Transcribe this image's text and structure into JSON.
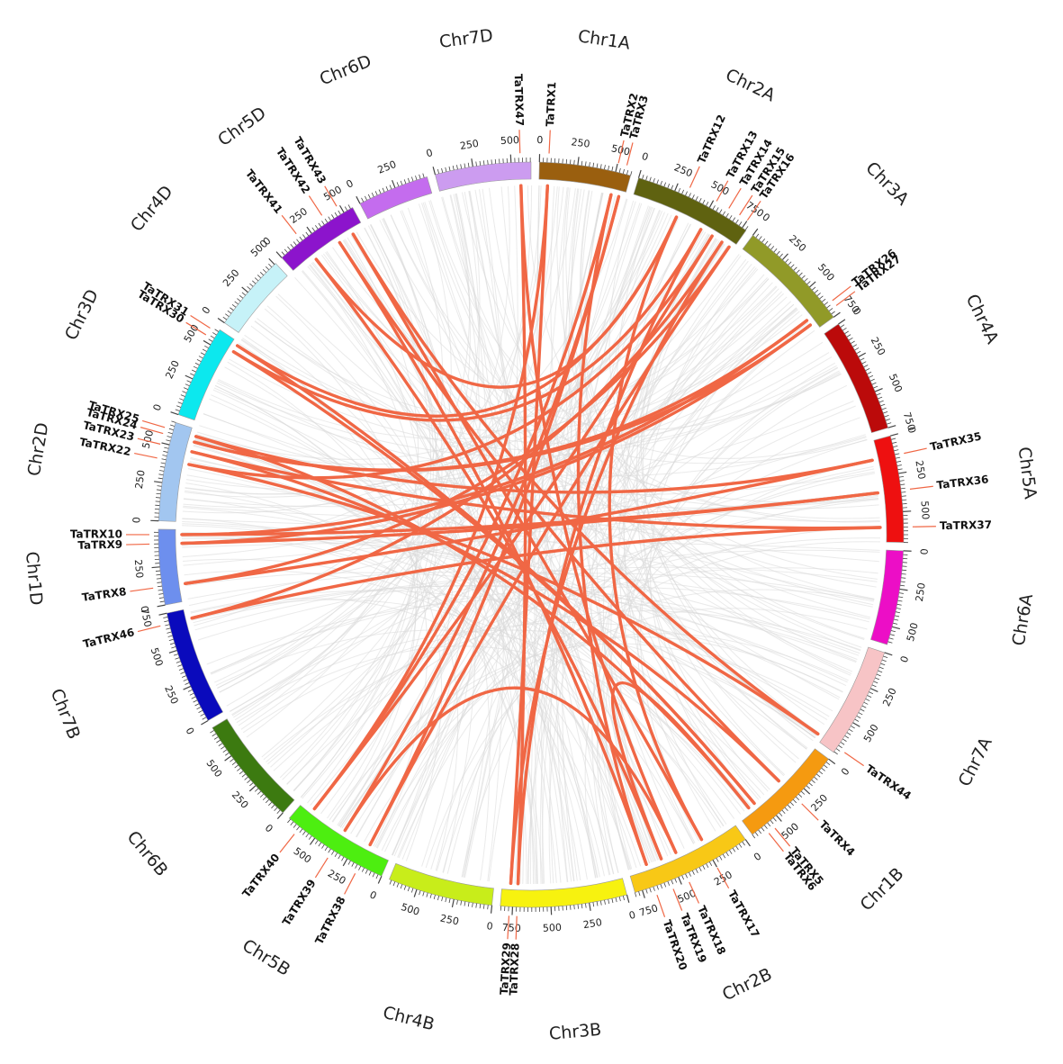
{
  "link_color": "#F06745",
  "background_link_color": "#D8D8D8",
  "chromosomes": [
    {
      "name": "Chr1A",
      "length": 600,
      "color": "#9A5F0F"
    },
    {
      "name": "Chr2A",
      "length": 780,
      "color": "#5F6210"
    },
    {
      "name": "Chr3A",
      "length": 750,
      "color": "#919A28"
    },
    {
      "name": "Chr4A",
      "length": 750,
      "color": "#BB0A0A"
    },
    {
      "name": "Chr5A",
      "length": 700,
      "color": "#EE1010"
    },
    {
      "name": "Chr6A",
      "length": 620,
      "color": "#EC0EC6"
    },
    {
      "name": "Chr7A",
      "length": 730,
      "color": "#F7C4C6"
    },
    {
      "name": "Chr1B",
      "length": 700,
      "color": "#F59A10"
    },
    {
      "name": "Chr2B",
      "length": 800,
      "color": "#F8C816"
    },
    {
      "name": "Chr3B",
      "length": 830,
      "color": "#F7F20F"
    },
    {
      "name": "Chr4B",
      "length": 690,
      "color": "#C8ED1A"
    },
    {
      "name": "Chr5B",
      "length": 710,
      "color": "#4DEE10"
    },
    {
      "name": "Chr6B",
      "length": 720,
      "color": "#3C7A10"
    },
    {
      "name": "Chr7B",
      "length": 750,
      "color": "#0A0ABC"
    },
    {
      "name": "Chr1D",
      "length": 495,
      "color": "#6D8FEE"
    },
    {
      "name": "Chr2D",
      "length": 650,
      "color": "#A2C6F0"
    },
    {
      "name": "Chr3D",
      "length": 615,
      "color": "#0CE8EE"
    },
    {
      "name": "Chr4D",
      "length": 510,
      "color": "#C6F2F8"
    },
    {
      "name": "Chr5D",
      "length": 565,
      "color": "#8C14CC"
    },
    {
      "name": "Chr6D",
      "length": 470,
      "color": "#C46CEE"
    },
    {
      "name": "Chr7D",
      "length": 630,
      "color": "#CC9CF0"
    }
  ],
  "genes": [
    {
      "name": "TaTRX1",
      "chr": "Chr1A",
      "pos": 60
    },
    {
      "name": "TaTRX2",
      "chr": "Chr1A",
      "pos": 505
    },
    {
      "name": "TaTRX3",
      "chr": "Chr1A",
      "pos": 560
    },
    {
      "name": "TaTRX12",
      "chr": "Chr2A",
      "pos": 330
    },
    {
      "name": "TaTRX13",
      "chr": "Chr2A",
      "pos": 520
    },
    {
      "name": "TaTRX14",
      "chr": "Chr2A",
      "pos": 610
    },
    {
      "name": "TaTRX15",
      "chr": "Chr2A",
      "pos": 690
    },
    {
      "name": "TaTRX16",
      "chr": "Chr2A",
      "pos": 750
    },
    {
      "name": "TaTRX26",
      "chr": "Chr3A",
      "pos": 660
    },
    {
      "name": "TaTRX27",
      "chr": "Chr3A",
      "pos": 700
    },
    {
      "name": "TaTRX35",
      "chr": "Chr5A",
      "pos": 130
    },
    {
      "name": "TaTRX36",
      "chr": "Chr5A",
      "pos": 360
    },
    {
      "name": "TaTRX37",
      "chr": "Chr5A",
      "pos": 600
    },
    {
      "name": "TaTRX44",
      "chr": "Chr7A",
      "pos": 690
    },
    {
      "name": "TaTRX4",
      "chr": "Chr1B",
      "pos": 330
    },
    {
      "name": "TaTRX5",
      "chr": "Chr1B",
      "pos": 560
    },
    {
      "name": "TaTRX6",
      "chr": "Chr1B",
      "pos": 610
    },
    {
      "name": "TaTRX17",
      "chr": "Chr2B",
      "pos": 250
    },
    {
      "name": "TaTRX18",
      "chr": "Chr2B",
      "pos": 450
    },
    {
      "name": "TaTRX19",
      "chr": "Chr2B",
      "pos": 560
    },
    {
      "name": "TaTRX20",
      "chr": "Chr2B",
      "pos": 670
    },
    {
      "name": "TaTRX28",
      "chr": "Chr3B",
      "pos": 720
    },
    {
      "name": "TaTRX29",
      "chr": "Chr3B",
      "pos": 770
    },
    {
      "name": "TaTRX38",
      "chr": "Chr5B",
      "pos": 160
    },
    {
      "name": "TaTRX39",
      "chr": "Chr5B",
      "pos": 360
    },
    {
      "name": "TaTRX40",
      "chr": "Chr5B",
      "pos": 620
    },
    {
      "name": "TaTRX46",
      "chr": "Chr7B",
      "pos": 680
    },
    {
      "name": "TaTRX8",
      "chr": "Chr1D",
      "pos": 120
    },
    {
      "name": "TaTRX9",
      "chr": "Chr1D",
      "pos": 400
    },
    {
      "name": "TaTRX10",
      "chr": "Chr1D",
      "pos": 460
    },
    {
      "name": "TaTRX22",
      "chr": "Chr2D",
      "pos": 400
    },
    {
      "name": "TaTRX23",
      "chr": "Chr2D",
      "pos": 490
    },
    {
      "name": "TaTRX24",
      "chr": "Chr2D",
      "pos": 560
    },
    {
      "name": "TaTRX25",
      "chr": "Chr2D",
      "pos": 600
    },
    {
      "name": "TaTRX30",
      "chr": "Chr3D",
      "pos": 540
    },
    {
      "name": "TaTRX31",
      "chr": "Chr3D",
      "pos": 590
    },
    {
      "name": "TaTRX41",
      "chr": "Chr5D",
      "pos": 170
    },
    {
      "name": "TaTRX42",
      "chr": "Chr5D",
      "pos": 370
    },
    {
      "name": "TaTRX43",
      "chr": "Chr5D",
      "pos": 480
    },
    {
      "name": "TaTRX47",
      "chr": "Chr7D",
      "pos": 560
    }
  ],
  "links": [
    [
      "TaTRX1",
      "TaTRX29"
    ],
    [
      "TaTRX47",
      "TaTRX28"
    ],
    [
      "TaTRX2",
      "TaTRX40"
    ],
    [
      "TaTRX3",
      "TaTRX38"
    ],
    [
      "TaTRX3",
      "TaTRX39"
    ],
    [
      "TaTRX12",
      "TaTRX41"
    ],
    [
      "TaTRX12",
      "TaTRX17"
    ],
    [
      "TaTRX13",
      "TaTRX30"
    ],
    [
      "TaTRX14",
      "TaTRX22"
    ],
    [
      "TaTRX15",
      "TaTRX46"
    ],
    [
      "TaTRX16",
      "TaTRX8"
    ],
    [
      "TaTRX26",
      "TaTRX24"
    ],
    [
      "TaTRX27",
      "TaTRX9"
    ],
    [
      "TaTRX35",
      "TaTRX25"
    ],
    [
      "TaTRX36",
      "TaTRX10"
    ],
    [
      "TaTRX37",
      "TaTRX23"
    ],
    [
      "TaTRX44",
      "TaTRX43"
    ],
    [
      "TaTRX4",
      "TaTRX42"
    ],
    [
      "TaTRX5",
      "TaTRX31"
    ],
    [
      "TaTRX6",
      "TaTRX19"
    ],
    [
      "TaTRX18",
      "TaTRX39"
    ],
    [
      "TaTRX20",
      "TaTRX2"
    ],
    [
      "TaTRX17",
      "TaTRX43"
    ],
    [
      "TaTRX28",
      "TaTRX13"
    ],
    [
      "TaTRX29",
      "TaTRX15"
    ],
    [
      "TaTRX40",
      "TaTRX14"
    ],
    [
      "TaTRX38",
      "TaTRX16"
    ],
    [
      "TaTRX41",
      "TaTRX19"
    ],
    [
      "TaTRX42",
      "TaTRX20"
    ],
    [
      "TaTRX46",
      "TaTRX37"
    ],
    [
      "TaTRX8",
      "TaTRX35"
    ],
    [
      "TaTRX9",
      "TaTRX36"
    ],
    [
      "TaTRX10",
      "TaTRX26"
    ],
    [
      "TaTRX22",
      "TaTRX44"
    ],
    [
      "TaTRX23",
      "TaTRX4"
    ],
    [
      "TaTRX24",
      "TaTRX27"
    ],
    [
      "TaTRX25",
      "TaTRX6"
    ],
    [
      "TaTRX30",
      "TaTRX5"
    ],
    [
      "TaTRX31",
      "TaTRX12"
    ],
    [
      "TaTRX47",
      "TaTRX18"
    ],
    [
      "TaTRX1",
      "TaTRX40"
    ]
  ]
}
